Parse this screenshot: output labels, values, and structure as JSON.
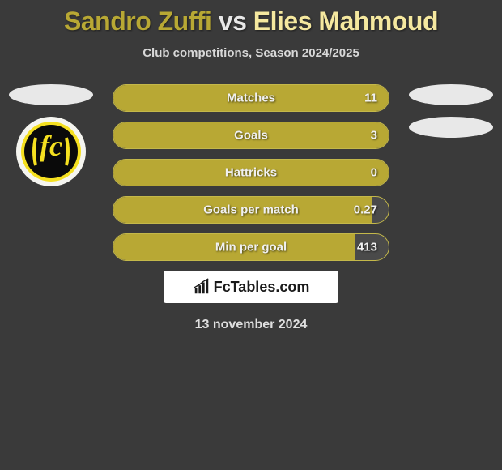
{
  "title": {
    "player1": "Sandro Zuffi",
    "vs": "vs",
    "player2": "Elies Mahmoud",
    "p1_color": "#b8a834",
    "vs_color": "#e8e8e8",
    "p2_color": "#f5e89f"
  },
  "subtitle": "Club competitions, Season 2024/2025",
  "layout": {
    "bg_color": "#3a3a3a",
    "bar_border_color": "#c4b84a",
    "bar_track_color": "#4a4a4a",
    "bar_fill_color": "#b8a834",
    "text_color": "#f0f0f0"
  },
  "bars": [
    {
      "label": "Matches",
      "value": "11",
      "fill_pct": 100
    },
    {
      "label": "Goals",
      "value": "3",
      "fill_pct": 100
    },
    {
      "label": "Hattricks",
      "value": "0",
      "fill_pct": 100
    },
    {
      "label": "Goals per match",
      "value": "0.27",
      "fill_pct": 94
    },
    {
      "label": "Min per goal",
      "value": "413",
      "fill_pct": 88
    }
  ],
  "club_badge": {
    "outer_color": "#f5f5f0",
    "ring_color": "#f5e020",
    "inner_color": "#0a0a0a"
  },
  "footer": {
    "logo_text": "FcTables.com",
    "date": "13 november 2024"
  }
}
